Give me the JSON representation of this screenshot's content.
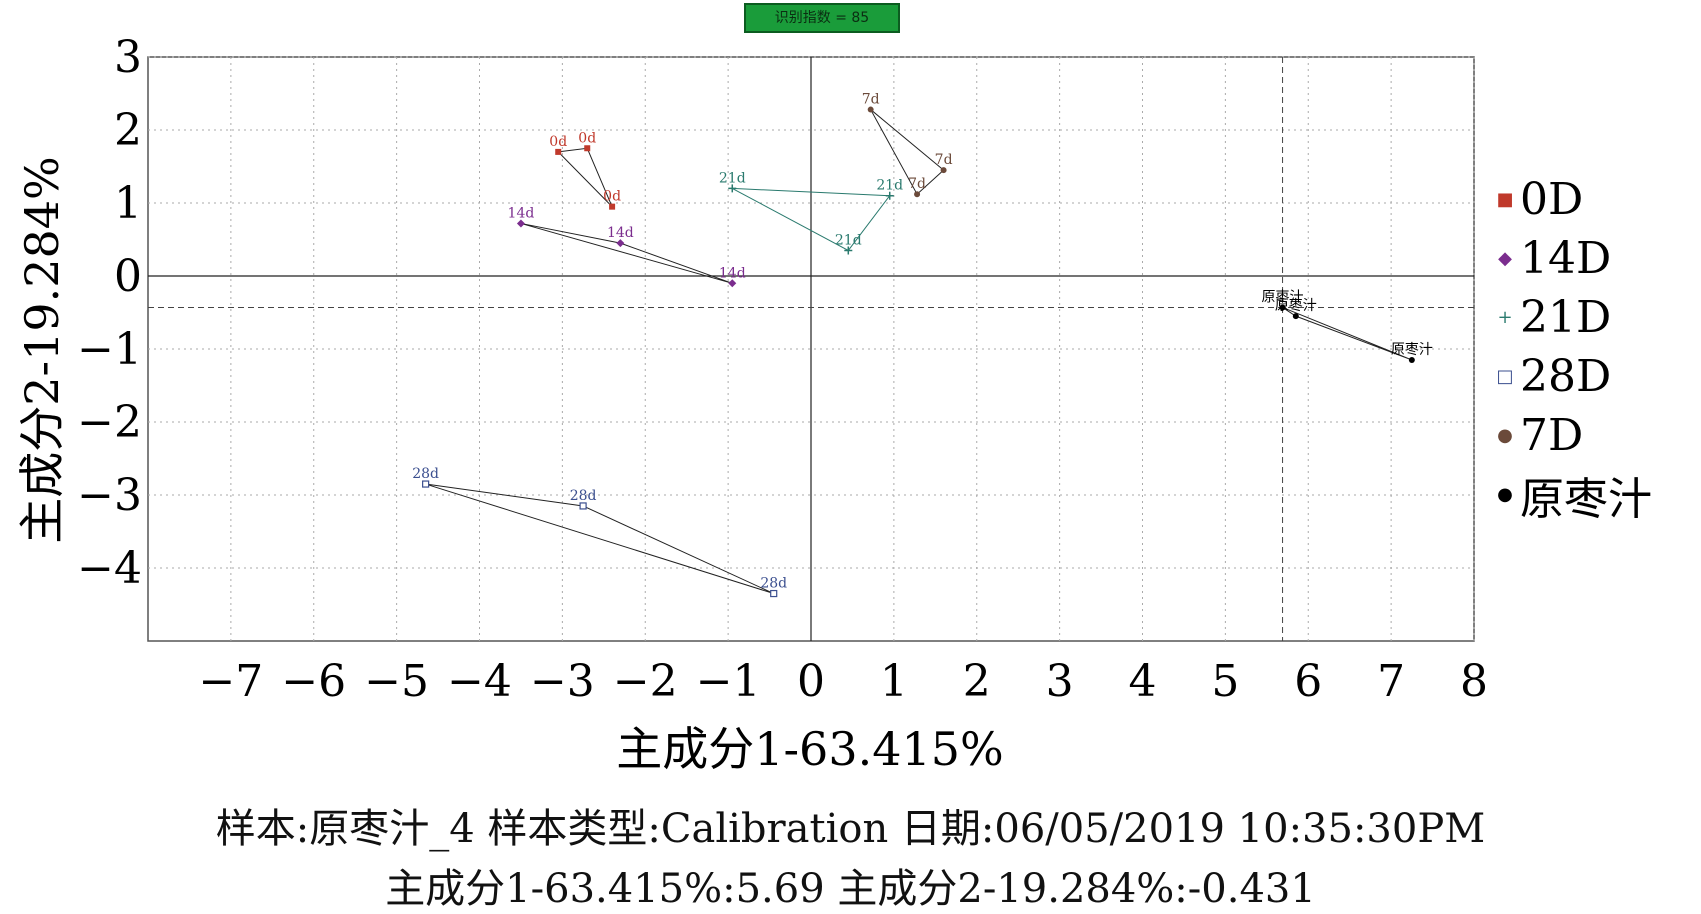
{
  "badge": {
    "text": "识别指数 = 85"
  },
  "chart_data": {
    "type": "scatter",
    "xlabel": "主成分1-63.415%",
    "ylabel": "主成分2-19.284%",
    "xlim": [
      -8,
      8
    ],
    "ylim": [
      -5,
      3
    ],
    "xticks": [
      -7,
      -6,
      -5,
      -4,
      -3,
      -2,
      -1,
      0,
      1,
      2,
      3,
      4,
      5,
      6,
      7,
      8
    ],
    "xtick_labels": [
      "−7",
      "−6",
      "−5",
      "−4",
      "−3",
      "−2",
      "−1",
      "0",
      "1",
      "2",
      "3",
      "4",
      "5",
      "6",
      "7",
      "8"
    ],
    "yticks": [
      3,
      2,
      1,
      0,
      -1,
      -2,
      -3,
      -4
    ],
    "ytick_labels": [
      "3",
      "2",
      "1",
      "0",
      "−1",
      "−2",
      "−3",
      "−4"
    ],
    "grid": true,
    "crosshair": {
      "x": 5.69,
      "y": -0.431
    },
    "legend_position": "right",
    "series": [
      {
        "name": "0D",
        "marker": "square",
        "color": "#c0392b",
        "points": [
          {
            "x": -3.05,
            "y": 1.7,
            "label": "0d"
          },
          {
            "x": -2.7,
            "y": 1.75,
            "label": "0d"
          },
          {
            "x": -2.4,
            "y": 0.95,
            "label": "0d"
          }
        ]
      },
      {
        "name": "14D",
        "marker": "diamond",
        "color": "#7b2d8e",
        "points": [
          {
            "x": -3.5,
            "y": 0.72,
            "label": "14d"
          },
          {
            "x": -2.3,
            "y": 0.45,
            "label": "14d"
          },
          {
            "x": -0.95,
            "y": -0.1,
            "label": "14d"
          }
        ]
      },
      {
        "name": "21D",
        "marker": "plus",
        "color": "#2a7a6e",
        "points": [
          {
            "x": -0.95,
            "y": 1.2,
            "label": "21d"
          },
          {
            "x": 0.95,
            "y": 1.1,
            "label": "21d"
          },
          {
            "x": 0.45,
            "y": 0.35,
            "label": "21d"
          }
        ]
      },
      {
        "name": "28D",
        "marker": "open-square",
        "color": "#3b4f8f",
        "points": [
          {
            "x": -4.65,
            "y": -2.85,
            "label": "28d"
          },
          {
            "x": -2.75,
            "y": -3.15,
            "label": "28d"
          },
          {
            "x": -0.45,
            "y": -4.35,
            "label": "28d"
          }
        ]
      },
      {
        "name": "7D",
        "marker": "circle",
        "color": "#6b4a3a",
        "points": [
          {
            "x": 0.72,
            "y": 2.28,
            "label": "7d"
          },
          {
            "x": 1.6,
            "y": 1.45,
            "label": "7d"
          },
          {
            "x": 1.28,
            "y": 1.12,
            "label": "7d"
          }
        ]
      },
      {
        "name": "原枣汁",
        "marker": "dot",
        "color": "#000000",
        "points": [
          {
            "x": 5.69,
            "y": -0.431,
            "label": "原枣汁"
          },
          {
            "x": 5.85,
            "y": -0.55,
            "label": "原枣汁"
          },
          {
            "x": 7.25,
            "y": -1.15,
            "label": "原枣汁"
          }
        ]
      }
    ]
  },
  "legend": [
    {
      "label": "0D",
      "marker": "■",
      "color": "#c0392b"
    },
    {
      "label": "14D",
      "marker": "◆",
      "color": "#7b2d8e"
    },
    {
      "label": "21D",
      "marker": "+",
      "color": "#2a7a6e"
    },
    {
      "label": "28D",
      "marker": "□",
      "color": "#3b4f8f"
    },
    {
      "label": "7D",
      "marker": "●",
      "color": "#6b4a3a"
    },
    {
      "label": "原枣汁",
      "marker": "●",
      "color": "#000000"
    }
  ],
  "caption": {
    "line1": "样本:原枣汁_4 样本类型:Calibration 日期:06/05/2019 10:35:30PM",
    "line2": "主成分1-63.415%:5.69 主成分2-19.284%:-0.431"
  }
}
